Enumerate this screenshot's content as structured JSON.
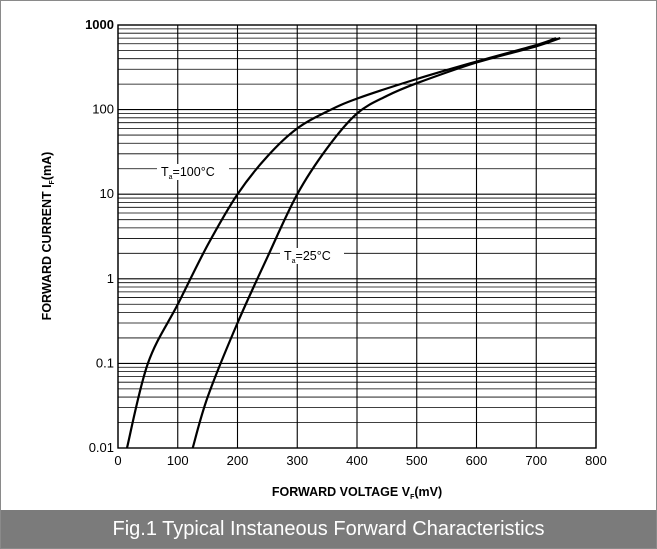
{
  "caption": "Fig.1 Typical Instaneous Forward Characteristics",
  "colors": {
    "caption_bg": "#7b7b7b",
    "caption_text": "#ffffff",
    "ink": "#000000"
  },
  "chart_data": {
    "type": "line",
    "title": "",
    "xlabel": {
      "main": "FORWARD VOLTAGE",
      "symbol": "V",
      "sub": "F",
      "unit": "(mV)"
    },
    "ylabel": {
      "main": "FORWARD CURRENT",
      "symbol": "I",
      "sub": "F",
      "unit": "(mA)"
    },
    "xlim": [
      0,
      800
    ],
    "ylim": [
      0.01,
      1000
    ],
    "yscale": "log",
    "grid": true,
    "x_ticks": [
      0,
      100,
      200,
      300,
      400,
      500,
      600,
      700,
      800
    ],
    "x_tick_labels": [
      "0",
      "100",
      "200",
      "300",
      "400",
      "500",
      "600",
      "700",
      "800"
    ],
    "y_ticks": [
      0.01,
      0.1,
      1,
      10,
      100,
      1000
    ],
    "y_tick_labels": [
      "0.01",
      "0.1",
      "1",
      "10",
      "100",
      "1000"
    ],
    "series": [
      {
        "name": "Ta=100°C",
        "label_main": "T",
        "label_sub": "a",
        "label_rest": "=100°C",
        "x": [
          15,
          50,
          100,
          150,
          200,
          250,
          300,
          350,
          400,
          500,
          600,
          700,
          733
        ],
        "y": [
          0.01,
          0.1,
          0.5,
          2.5,
          10,
          28,
          60,
          95,
          135,
          230,
          370,
          580,
          700
        ]
      },
      {
        "name": "Ta=25°C",
        "label_main": "T",
        "label_sub": "a",
        "label_rest": "=25°C",
        "x": [
          125,
          150,
          200,
          250,
          300,
          350,
          400,
          450,
          500,
          600,
          700,
          740
        ],
        "y": [
          0.01,
          0.04,
          0.3,
          1.8,
          10,
          35,
          90,
          145,
          205,
          360,
          560,
          700
        ]
      }
    ]
  }
}
